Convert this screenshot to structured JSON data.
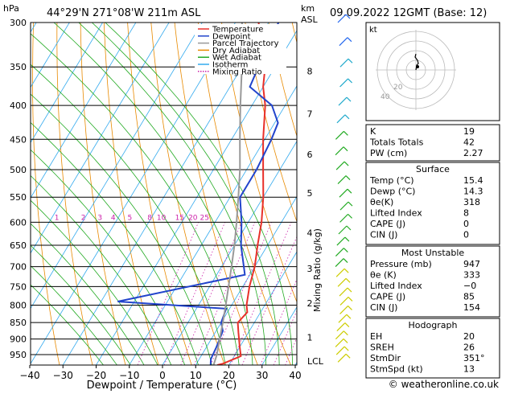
{
  "header": {
    "location": "44°29'N  271°08'W  211m  ASL",
    "datetime": "09.09.2022  12GMT  (Base: 12)",
    "unit_hpa": "hPa",
    "unit_km": "km",
    "unit_asl": "ASL"
  },
  "skewt": {
    "xlabel": "Dewpoint / Temperature (°C)",
    "ylabel_right": "Mixing Ratio (g/kg)",
    "lcl_label": "LCL",
    "pressure_levels": [
      300,
      350,
      400,
      450,
      500,
      550,
      600,
      650,
      700,
      750,
      800,
      850,
      900,
      950
    ],
    "pressure_labels": [
      "300",
      "350",
      "400",
      "450",
      "500",
      "550",
      "600",
      "650",
      "700",
      "750",
      "800",
      "850",
      "900",
      "950"
    ],
    "temp_ticks": [
      -40,
      -30,
      -20,
      -10,
      0,
      10,
      20,
      30,
      40
    ],
    "temp_tick_labels": [
      "−40",
      "−30",
      "−20",
      "−10",
      "0",
      "10",
      "20",
      "30",
      "40"
    ],
    "km_labels": [
      {
        "label": "8",
        "p": 355
      },
      {
        "label": "7",
        "p": 412
      },
      {
        "label": "6",
        "p": 474
      },
      {
        "label": "5",
        "p": 542
      },
      {
        "label": "4",
        "p": 622
      },
      {
        "label": "3",
        "p": 705
      },
      {
        "label": "2",
        "p": 795
      },
      {
        "label": "1",
        "p": 895
      }
    ],
    "mixing_ratio_labels": [
      {
        "label": "1",
        "t": -6
      },
      {
        "label": "2",
        "t": 2
      },
      {
        "label": "3",
        "t": 7
      },
      {
        "label": "4",
        "t": 11
      },
      {
        "label": "5",
        "t": 16
      },
      {
        "label": "8",
        "t": 22
      },
      {
        "label": "10",
        "t": 25.5
      },
      {
        "label": "15",
        "t": 31
      },
      {
        "label": "20",
        "t": 35
      },
      {
        "label": "25",
        "t": 38.5
      }
    ]
  },
  "legend": [
    {
      "label": "Temperature",
      "color": "#e8302a",
      "style": "solid"
    },
    {
      "label": "Dewpoint",
      "color": "#2244cc",
      "style": "solid"
    },
    {
      "label": "Parcel Trajectory",
      "color": "#999999",
      "style": "solid"
    },
    {
      "label": "Dry Adiabat",
      "color": "#e88a00",
      "style": "solid"
    },
    {
      "label": "Wet Adiabat",
      "color": "#22aa22",
      "style": "solid"
    },
    {
      "label": "Isotherm",
      "color": "#33aaee",
      "style": "solid"
    },
    {
      "label": "Mixing Ratio",
      "color": "#cc22aa",
      "style": "dotted"
    }
  ],
  "chart_data": {
    "type": "line",
    "title": "",
    "xlabel": "Dewpoint / Temperature (°C)",
    "ylabel": "hPa",
    "xlim": [
      -40,
      40
    ],
    "ylim": [
      1000,
      300
    ],
    "yscale": "log",
    "series": [
      {
        "name": "Temperature",
        "color": "#e8302a",
        "points": [
          [
            16.5,
            985
          ],
          [
            18,
            980
          ],
          [
            22,
            955
          ],
          [
            20,
            925
          ],
          [
            17,
            880
          ],
          [
            15,
            850
          ],
          [
            16,
            820
          ],
          [
            14.5,
            800
          ],
          [
            12,
            750
          ],
          [
            10,
            700
          ],
          [
            7,
            650
          ],
          [
            4,
            600
          ],
          [
            0,
            550
          ],
          [
            -5,
            500
          ],
          [
            -10.5,
            450
          ],
          [
            -16,
            400
          ],
          [
            -20,
            375
          ],
          [
            -23,
            350
          ],
          [
            -28,
            325
          ],
          [
            -33,
            300
          ]
        ]
      },
      {
        "name": "Dewpoint",
        "color": "#2244cc",
        "points": [
          [
            14.5,
            985
          ],
          [
            13.5,
            965
          ],
          [
            13,
            925
          ],
          [
            12,
            875
          ],
          [
            10,
            850
          ],
          [
            9,
            810
          ],
          [
            -25,
            790
          ],
          [
            8.5,
            720
          ],
          [
            2,
            650
          ],
          [
            -2,
            600
          ],
          [
            -7,
            550
          ],
          [
            -7,
            500
          ],
          [
            -8,
            450
          ],
          [
            -9,
            425
          ],
          [
            -14,
            400
          ],
          [
            -24,
            375
          ],
          [
            -25,
            350
          ],
          [
            -26,
            325
          ],
          [
            -27,
            300
          ]
        ]
      },
      {
        "name": "Parcel Trajectory",
        "color": "#999999",
        "points": [
          [
            15.4,
            985
          ],
          [
            14.5,
            950
          ],
          [
            12.5,
            900
          ],
          [
            10.5,
            850
          ],
          [
            8.2,
            800
          ],
          [
            5.7,
            750
          ],
          [
            3,
            700
          ],
          [
            0,
            650
          ],
          [
            -3.5,
            600
          ],
          [
            -7.5,
            550
          ],
          [
            -12,
            500
          ],
          [
            -17.5,
            450
          ],
          [
            -23.5,
            400
          ],
          [
            -30,
            350
          ],
          [
            -38,
            300
          ]
        ]
      }
    ]
  },
  "hodograph": {
    "label": "kt",
    "ring_labels": [
      "20",
      "40"
    ],
    "points": [
      [
        0,
        0
      ],
      [
        1,
        -6
      ],
      [
        3,
        -8
      ],
      [
        2,
        -12
      ],
      [
        -1,
        -16
      ],
      [
        0,
        -20
      ]
    ],
    "storm": [
      2,
      -4
    ]
  },
  "indices": [
    {
      "label": "K",
      "value": "19"
    },
    {
      "label": "Totals Totals",
      "value": "42"
    },
    {
      "label": "PW (cm)",
      "value": "2.27"
    }
  ],
  "surface": {
    "title": "Surface",
    "rows": [
      {
        "label": "Temp (°C)",
        "value": "15.4"
      },
      {
        "label": "Dewp (°C)",
        "value": "14.3"
      },
      {
        "label": "θe(K)",
        "value": "318"
      },
      {
        "label": "Lifted Index",
        "value": "8"
      },
      {
        "label": "CAPE (J)",
        "value": "0"
      },
      {
        "label": "CIN (J)",
        "value": "0"
      }
    ]
  },
  "most_unstable": {
    "title": "Most Unstable",
    "rows": [
      {
        "label": "Pressure (mb)",
        "value": "947"
      },
      {
        "label": "θe (K)",
        "value": "333"
      },
      {
        "label": "Lifted Index",
        "value": "−0"
      },
      {
        "label": "CAPE (J)",
        "value": "85"
      },
      {
        "label": "CIN (J)",
        "value": "154"
      }
    ]
  },
  "hodograph_table": {
    "title": "Hodograph",
    "rows": [
      {
        "label": "EH",
        "value": "20"
      },
      {
        "label": "SREH",
        "value": "26"
      },
      {
        "label": "StmDir",
        "value": "351°"
      },
      {
        "label": "StmSpd (kt)",
        "value": "13"
      }
    ]
  },
  "footer": {
    "copyright": "© weatheronline.co.uk"
  }
}
